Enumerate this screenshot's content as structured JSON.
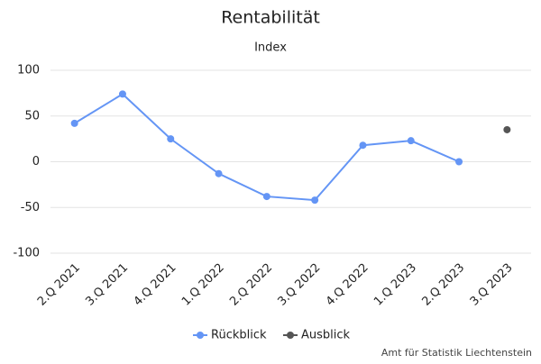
{
  "chart_data": {
    "type": "line",
    "title": "Rentabilität",
    "subtitle": "Index",
    "categories": [
      "2.Q 2021",
      "3.Q 2021",
      "4.Q 2021",
      "1.Q 2022",
      "2.Q 2022",
      "3.Q 2022",
      "4.Q 2022",
      "1.Q 2023",
      "2.Q 2023",
      "3.Q 2023"
    ],
    "series": [
      {
        "name": "Rückblick",
        "color": "#6495f5",
        "values": [
          42,
          74,
          25,
          -13,
          -38,
          -42,
          18,
          23,
          0,
          null
        ]
      },
      {
        "name": "Ausblick",
        "color": "#555555",
        "values": [
          null,
          null,
          null,
          null,
          null,
          null,
          null,
          null,
          null,
          35
        ]
      }
    ],
    "ylim": [
      -100,
      100
    ],
    "yticks": [
      -100,
      -50,
      0,
      50,
      100
    ],
    "grid": true,
    "source": "Amt für Statistik Liechtenstein"
  }
}
